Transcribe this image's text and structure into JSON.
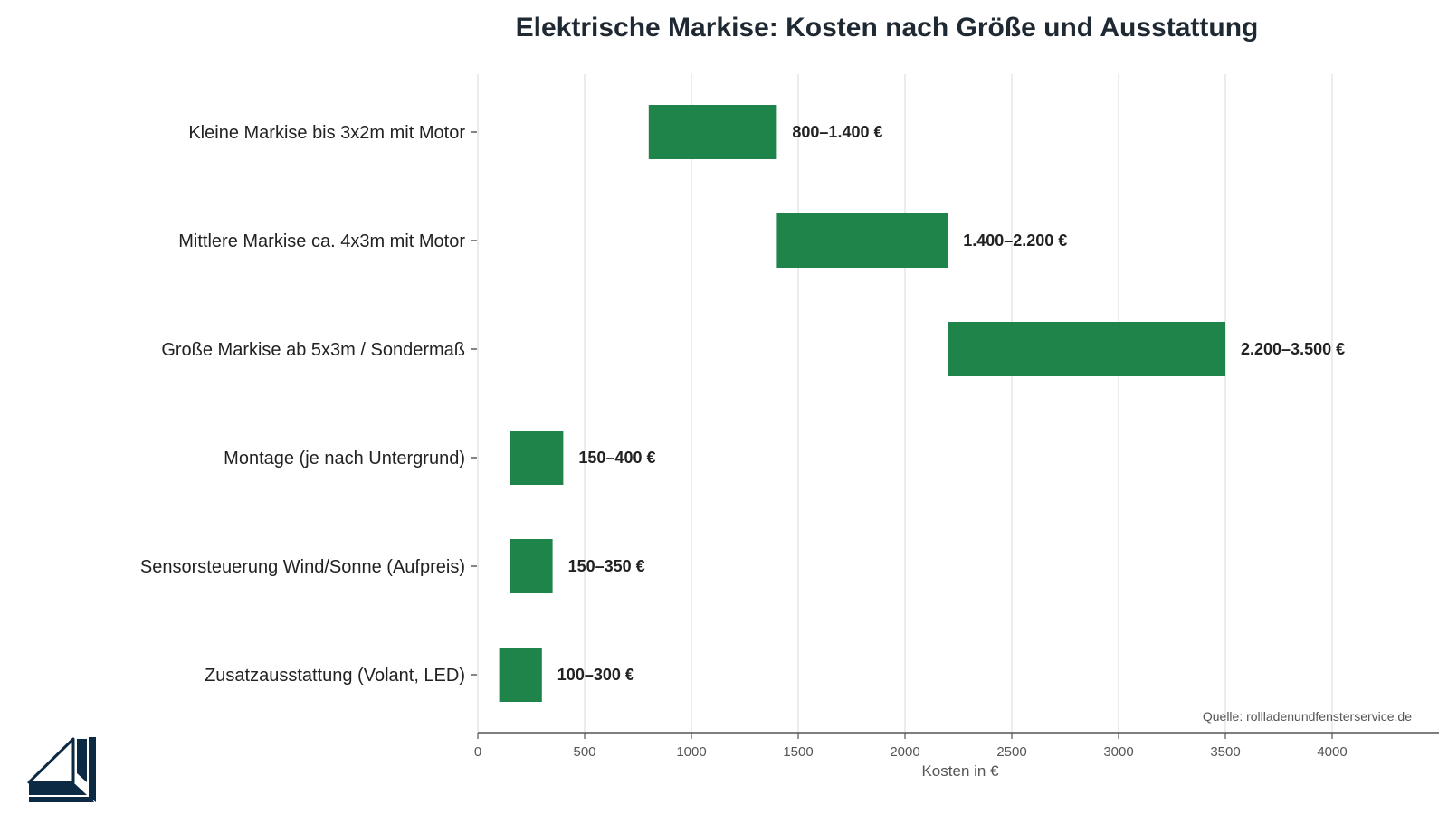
{
  "chart_data": {
    "type": "bar",
    "orientation": "horizontal",
    "subtype": "floating-range",
    "title": "Elektrische Markise: Kosten nach Größe und Ausstattung",
    "xlabel": "Kosten in €",
    "ylabel": "",
    "xlim": [
      0,
      4500
    ],
    "xticks": [
      0,
      500,
      1000,
      1500,
      2000,
      2500,
      3000,
      3500,
      4000
    ],
    "grid": "vertical",
    "legend": "none",
    "bar_color": "#1e8449",
    "categories": [
      "Kleine Markise bis 3x2m mit Motor",
      "Mittlere Markise ca. 4x3m mit Motor",
      "Große Markise ab 5x3m / Sondermaß",
      "Montage (je nach Untergrund)",
      "Sensorsteuerung Wind/Sonne (Aufpreis)",
      "Zusatzausstattung (Volant, LED)"
    ],
    "ranges": [
      [
        800,
        1400
      ],
      [
        1400,
        2200
      ],
      [
        2200,
        3500
      ],
      [
        150,
        400
      ],
      [
        150,
        350
      ],
      [
        100,
        300
      ]
    ],
    "labels": [
      "800–1.400 €",
      "1.400–2.200 €",
      "2.200–3.500 €",
      "150–400 €",
      "150–350 €",
      "100–300 €"
    ],
    "source": "Quelle: rollladenundfensterservice.de"
  },
  "logo": {
    "name": "window-logo",
    "color": "#0d2a45"
  }
}
